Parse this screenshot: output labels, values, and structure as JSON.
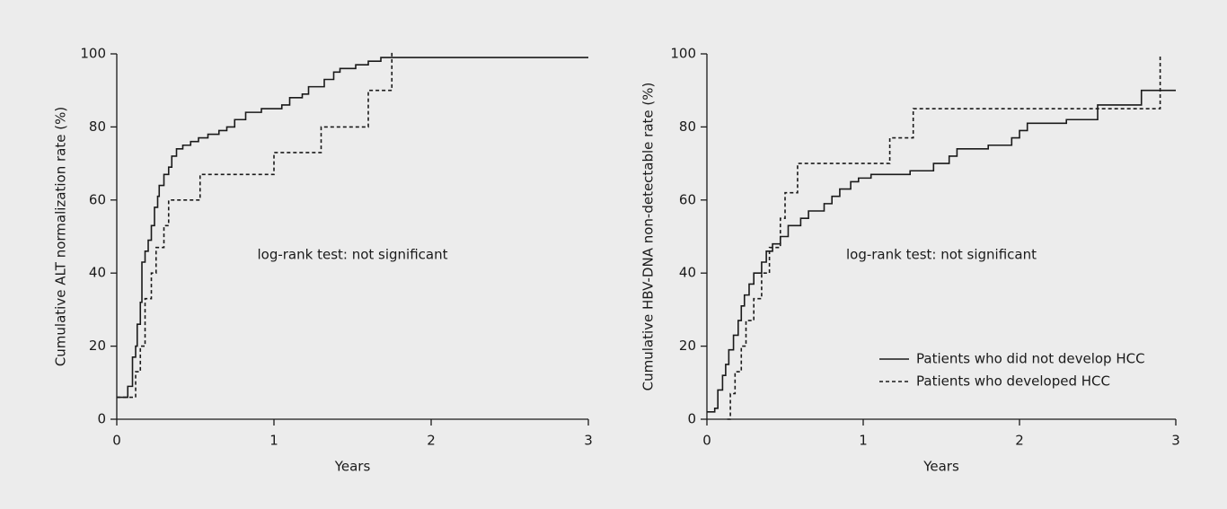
{
  "chart_data": [
    {
      "type": "line",
      "step": "post",
      "xlabel": "Years",
      "ylabel": "Cumulative ALT normalization rate (%)",
      "annotation": "log-rank test: not significant",
      "xlim": [
        0,
        3
      ],
      "ylim": [
        0,
        100
      ],
      "xticks": [
        0,
        1,
        2,
        3
      ],
      "yticks": [
        0,
        20,
        40,
        60,
        80,
        100
      ],
      "series": [
        {
          "color": "#1a1a1a",
          "linestyle": "solid",
          "x": [
            0,
            0.07,
            0.1,
            0.12,
            0.13,
            0.15,
            0.16,
            0.18,
            0.2,
            0.22,
            0.24,
            0.26,
            0.27,
            0.3,
            0.33,
            0.35,
            0.38,
            0.42,
            0.47,
            0.52,
            0.58,
            0.65,
            0.7,
            0.75,
            0.82,
            0.92,
            1.05,
            1.1,
            1.18,
            1.22,
            1.32,
            1.38,
            1.42,
            1.52,
            1.6,
            1.68,
            3.0
          ],
          "values": [
            6,
            9,
            17,
            20,
            26,
            32,
            43,
            46,
            49,
            53,
            58,
            61,
            64,
            67,
            69,
            72,
            74,
            75,
            76,
            77,
            78,
            79,
            80,
            82,
            84,
            85,
            86,
            88,
            89,
            91,
            93,
            95,
            96,
            97,
            98,
            99,
            99
          ]
        },
        {
          "color": "#1a1a1a",
          "linestyle": "dashed",
          "x": [
            0,
            0.1,
            0.12,
            0.15,
            0.18,
            0.22,
            0.25,
            0.3,
            0.33,
            0.53,
            1.0,
            1.3,
            1.6,
            1.75
          ],
          "values": [
            6,
            6,
            13,
            20,
            33,
            40,
            47,
            53,
            60,
            67,
            73,
            80,
            90,
            101
          ]
        }
      ]
    },
    {
      "type": "line",
      "step": "post",
      "xlabel": "Years",
      "ylabel": "Cumulative HBV-DNA non-detectable rate (%)",
      "annotation": "log-rank test: not significant",
      "xlim": [
        0,
        3
      ],
      "ylim": [
        0,
        100
      ],
      "xticks": [
        0,
        1,
        2,
        3
      ],
      "yticks": [
        0,
        20,
        40,
        60,
        80,
        100
      ],
      "legend": "lower right",
      "series": [
        {
          "name": "Patients who did not develop HCC",
          "color": "#1a1a1a",
          "linestyle": "solid",
          "x": [
            0,
            0.05,
            0.07,
            0.1,
            0.12,
            0.14,
            0.17,
            0.2,
            0.22,
            0.24,
            0.27,
            0.3,
            0.35,
            0.38,
            0.42,
            0.47,
            0.52,
            0.6,
            0.65,
            0.75,
            0.8,
            0.85,
            0.92,
            0.97,
            1.05,
            1.3,
            1.45,
            1.55,
            1.6,
            1.8,
            1.95,
            2.0,
            2.05,
            2.3,
            2.5,
            2.78,
            3.0
          ],
          "values": [
            2,
            3,
            8,
            12,
            15,
            19,
            23,
            27,
            31,
            34,
            37,
            40,
            43,
            46,
            48,
            50,
            53,
            55,
            57,
            59,
            61,
            63,
            65,
            66,
            67,
            68,
            70,
            72,
            74,
            75,
            77,
            79,
            81,
            82,
            86,
            90,
            90
          ]
        },
        {
          "name": "Patients who developed HCC",
          "color": "#1a1a1a",
          "linestyle": "dashed",
          "x": [
            0.13,
            0.15,
            0.18,
            0.22,
            0.25,
            0.3,
            0.35,
            0.4,
            0.47,
            0.5,
            0.58,
            1.17,
            1.32,
            2.5,
            2.9
          ],
          "values": [
            0,
            7,
            13,
            20,
            27,
            33,
            40,
            47,
            55,
            62,
            70,
            77,
            85,
            85,
            100
          ]
        }
      ]
    }
  ]
}
